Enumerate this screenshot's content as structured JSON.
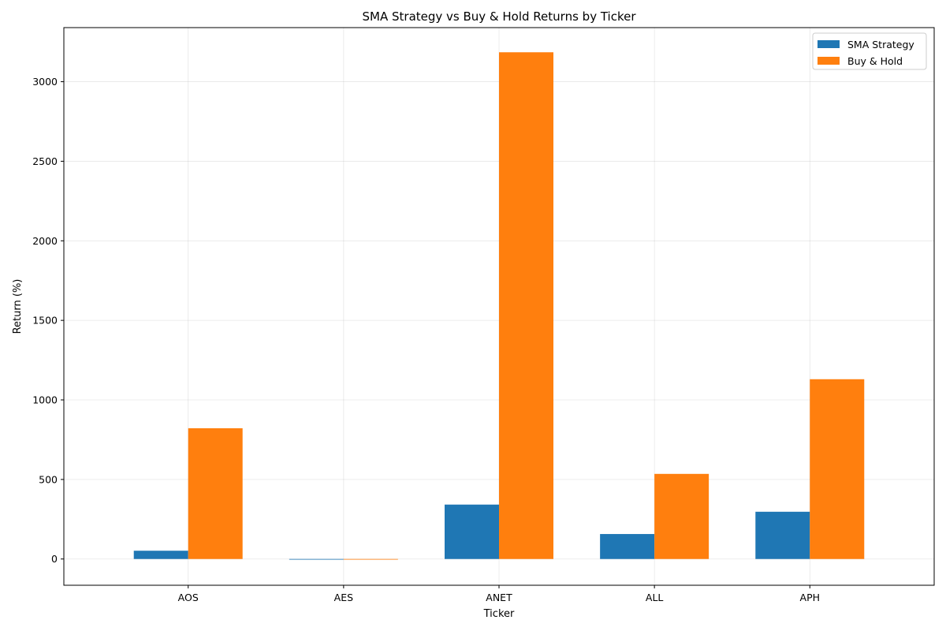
{
  "chart_data": {
    "type": "bar",
    "title": "SMA Strategy vs Buy & Hold Returns by Ticker",
    "xlabel": "Ticker",
    "ylabel": "Return (%)",
    "categories": [
      "AOS",
      "AES",
      "ANET",
      "ALL",
      "APH"
    ],
    "series": [
      {
        "name": "SMA Strategy",
        "color": "#1f77b4",
        "values": [
          52,
          -2,
          342,
          157,
          297
        ]
      },
      {
        "name": "Buy & Hold",
        "color": "#ff7f0e",
        "values": [
          822,
          -3,
          3185,
          535,
          1130
        ]
      }
    ],
    "ylim": [
      -165,
      3340
    ],
    "yticks": [
      0,
      500,
      1000,
      1500,
      2000,
      2500,
      3000
    ],
    "grid": true,
    "legend_position": "top-right"
  }
}
